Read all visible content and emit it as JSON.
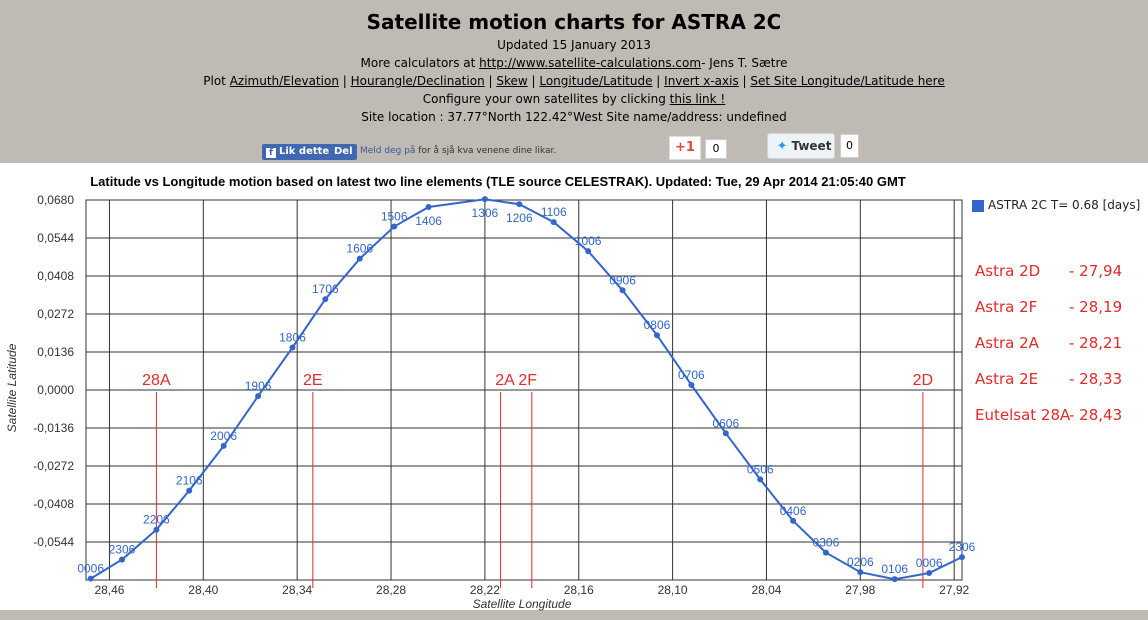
{
  "header": {
    "title": "Satellite motion charts for ASTRA 2C",
    "updated": "Updated 15 January 2013",
    "more_prefix": "More calculators at ",
    "more_link": "http://www.satellite-calculations.com",
    "more_suffix": "- Jens T. Sætre",
    "plot_prefix": "Plot ",
    "plot_links": [
      "Azimuth/Elevation",
      "Hourangle/Declination",
      "Skew",
      "Longitude/Latitude",
      "Invert x-axis",
      "Set Site Longitude/Latitude here"
    ],
    "configure_text": "Configure your own satellites by clicking ",
    "configure_link": "this link !",
    "site_location": "Site location : 37.77°North 122.42°West Site name/address: undefined"
  },
  "social": {
    "fb_like": "Lik dette",
    "fb_share": "Del",
    "fb_text_link": "Meld deg på",
    "fb_text_rest": " for å sjå kva venene dine likar.",
    "gplus_label": "+1",
    "gplus_count": "0",
    "tweet_label": "Tweet",
    "tweet_count": "0",
    "colors": {
      "facebook": "#4267b2",
      "gplus": "#dd4b39",
      "twitter": "#1da1f2"
    }
  },
  "chart_data": {
    "type": "line",
    "title": "Latitude vs Longitude motion based on latest two line elements (TLE source CELESTRAK). Updated: Tue, 29 Apr 2014 21:05:40 GMT",
    "xlabel": "Satellite Longitude",
    "ylabel": "Satellite Latitude",
    "xlim": [
      28.475,
      27.915
    ],
    "ylim": [
      -0.068,
      0.068
    ],
    "x_ticks": [
      "28,46",
      "28,40",
      "28,34",
      "28,28",
      "28,22",
      "28,16",
      "28,10",
      "28,04",
      "27,98",
      "27,92"
    ],
    "x_tick_values": [
      28.46,
      28.4,
      28.34,
      28.28,
      28.22,
      28.16,
      28.1,
      28.04,
      27.98,
      27.92
    ],
    "y_ticks": [
      "0,0680",
      "0,0544",
      "0,0408",
      "0,0272",
      "0,0136",
      "0,0000",
      "-0,0136",
      "-0,0272",
      "-0,0408",
      "-0,0544"
    ],
    "y_tick_values": [
      0.068,
      0.0544,
      0.0408,
      0.0272,
      0.0136,
      0.0,
      -0.0136,
      -0.0272,
      -0.0408,
      -0.0544
    ],
    "grid": true,
    "legend_position": "right",
    "series": [
      {
        "name": "ASTRA 2C T= 0.68 [days]",
        "color": "#3366cc",
        "points": [
          {
            "x": 28.472,
            "y": -0.0675,
            "label": "0006"
          },
          {
            "x": 28.452,
            "y": -0.0607,
            "label": "2306"
          },
          {
            "x": 28.43,
            "y": -0.05,
            "label": "2206"
          },
          {
            "x": 28.409,
            "y": -0.036,
            "label": "2106"
          },
          {
            "x": 28.387,
            "y": -0.02,
            "label": "2006"
          },
          {
            "x": 28.365,
            "y": -0.0022,
            "label": "1906"
          },
          {
            "x": 28.343,
            "y": 0.0152,
            "label": "1806"
          },
          {
            "x": 28.322,
            "y": 0.0325,
            "label": "1706"
          },
          {
            "x": 28.3,
            "y": 0.047,
            "label": "1606"
          },
          {
            "x": 28.278,
            "y": 0.0585,
            "label": "1506"
          },
          {
            "x": 28.256,
            "y": 0.0655,
            "label": "1406"
          },
          {
            "x": 28.22,
            "y": 0.0683,
            "label": "1306"
          },
          {
            "x": 28.198,
            "y": 0.0665,
            "label": "1206"
          },
          {
            "x": 28.176,
            "y": 0.0601,
            "label": "1106"
          },
          {
            "x": 28.154,
            "y": 0.0497,
            "label": "1006"
          },
          {
            "x": 28.132,
            "y": 0.0357,
            "label": "0906"
          },
          {
            "x": 28.11,
            "y": 0.0196,
            "label": "0806"
          },
          {
            "x": 28.088,
            "y": 0.0018,
            "label": "0706"
          },
          {
            "x": 28.066,
            "y": -0.0155,
            "label": "0606"
          },
          {
            "x": 28.044,
            "y": -0.032,
            "label": "0506"
          },
          {
            "x": 28.023,
            "y": -0.0468,
            "label": "0406"
          },
          {
            "x": 28.002,
            "y": -0.0582,
            "label": "0306"
          },
          {
            "x": 27.98,
            "y": -0.0652,
            "label": "0206"
          },
          {
            "x": 27.958,
            "y": -0.0677,
            "label": "0106"
          },
          {
            "x": 27.936,
            "y": -0.0655,
            "label": "0006"
          },
          {
            "x": 27.915,
            "y": -0.0598,
            "label": "2306"
          }
        ]
      }
    ],
    "markers": [
      {
        "label": "28A",
        "x": [
          28.43
        ]
      },
      {
        "label": "2E",
        "x": [
          28.33
        ]
      },
      {
        "label": "2A 2F",
        "x": [
          28.21,
          28.19
        ]
      },
      {
        "label": "2D",
        "x": [
          27.94
        ]
      }
    ],
    "marker_color": "#e52a2a"
  },
  "satellites": [
    {
      "name": "Astra 2D",
      "value": "- 27,94"
    },
    {
      "name": "Astra 2F",
      "value": "- 28,19"
    },
    {
      "name": "Astra 2A",
      "value": "- 28,21"
    },
    {
      "name": "Astra 2E",
      "value": "- 28,33"
    },
    {
      "name": "Eutelsat 28A",
      "value": "- 28,43"
    }
  ]
}
